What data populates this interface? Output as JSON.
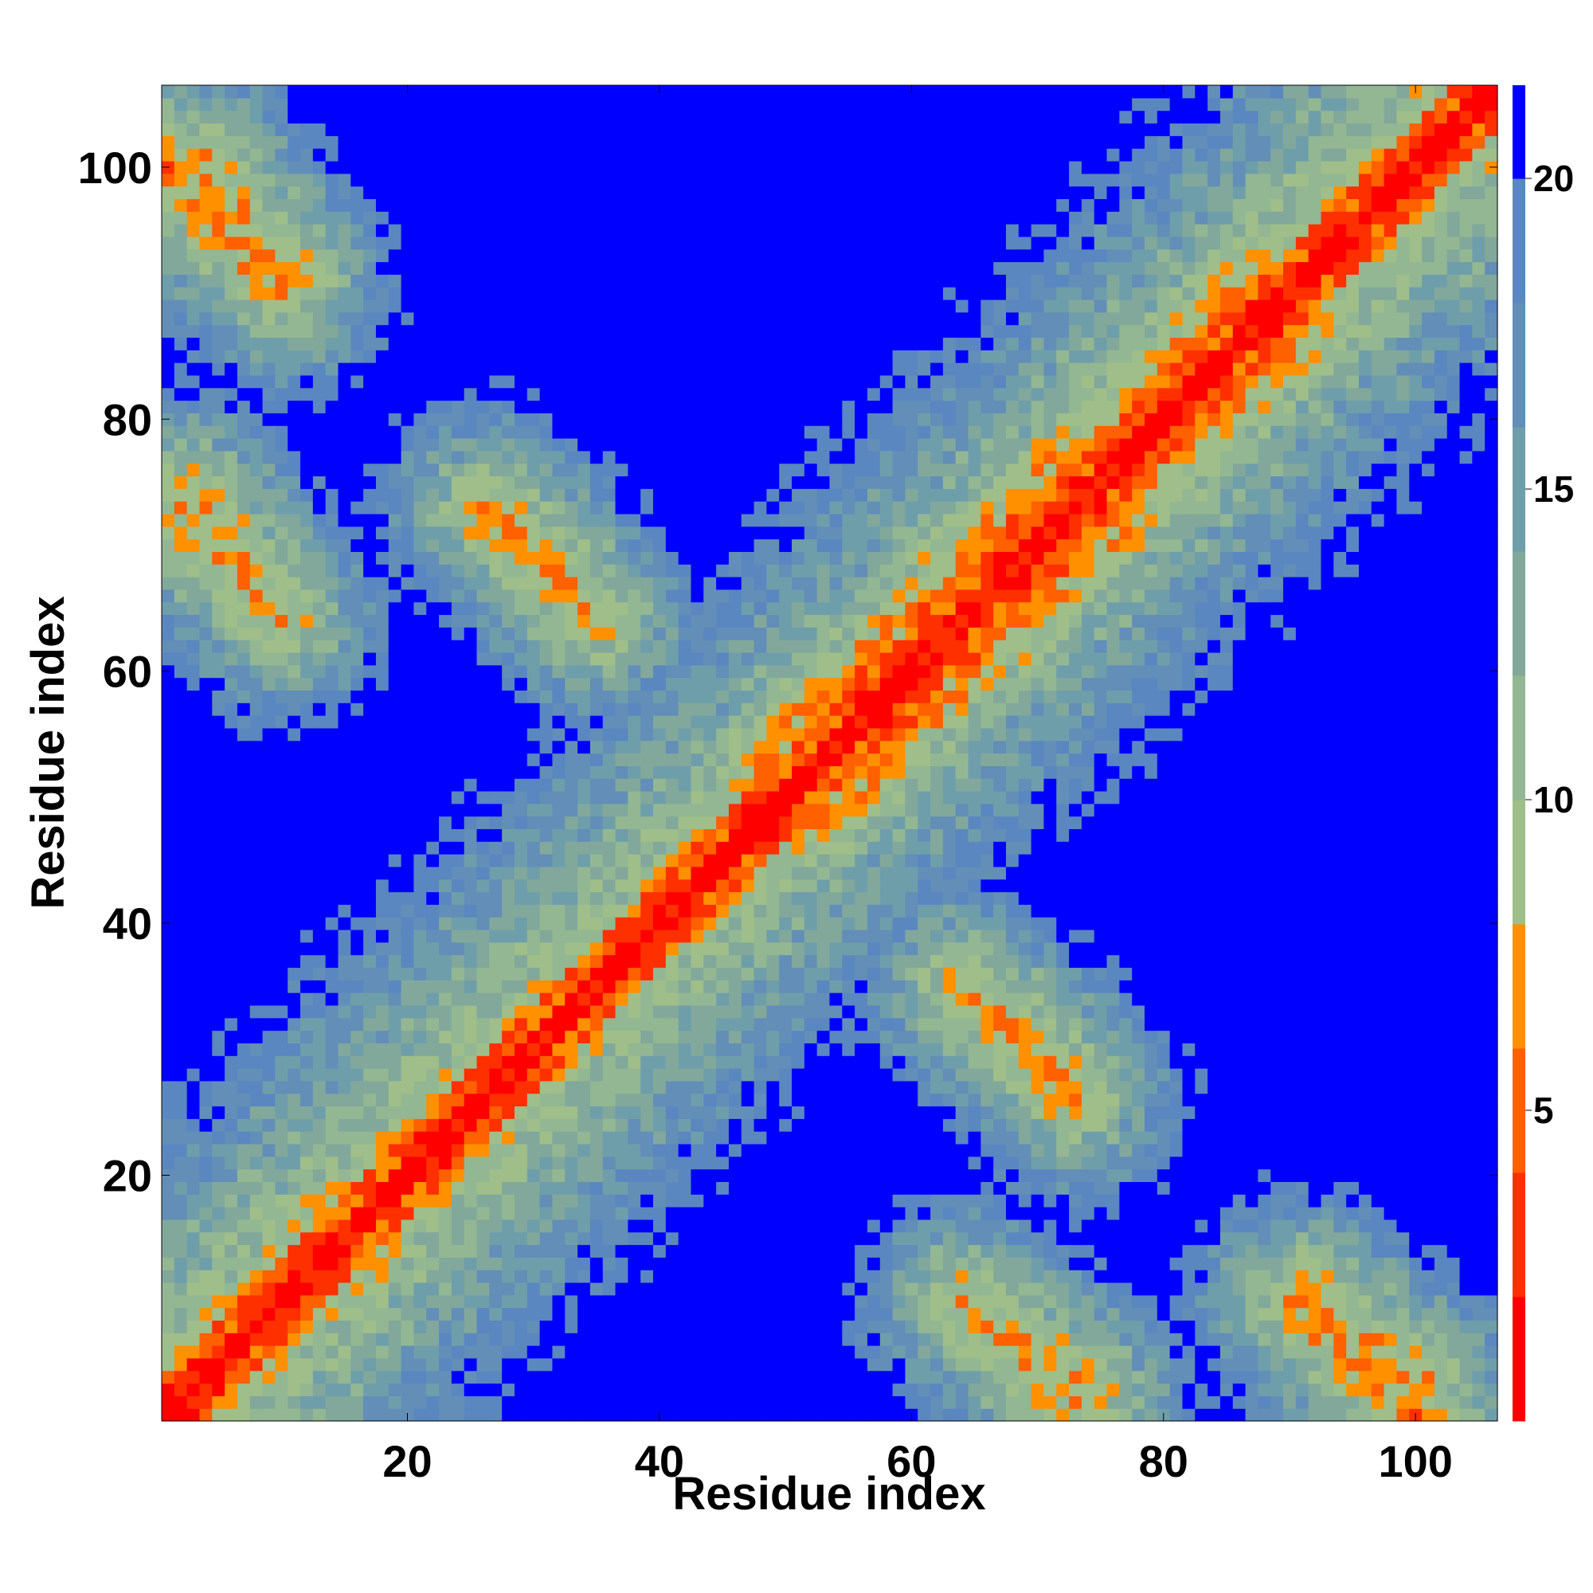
{
  "chart_data": {
    "type": "heatmap",
    "title": "",
    "xlabel": "Residue index",
    "ylabel": "Residue index",
    "residue_count": 106,
    "xlim": [
      0.5,
      106.5
    ],
    "ylim": [
      0.5,
      106.5
    ],
    "x_ticks": [
      20,
      40,
      60,
      80,
      100
    ],
    "y_ticks": [
      20,
      40,
      60,
      80,
      100
    ],
    "x_tick_labels": [
      "20",
      "40",
      "60",
      "80",
      "100"
    ],
    "y_tick_labels": [
      "20",
      "40",
      "60",
      "80",
      "100"
    ],
    "colorbar": {
      "range": [
        0,
        21.5
      ],
      "ticks": [
        5,
        10,
        15,
        20
      ],
      "tick_labels": [
        "5",
        "10",
        "15",
        "20"
      ],
      "bands": [
        {
          "from": 0,
          "to": 2,
          "color": "#ff0000"
        },
        {
          "from": 2,
          "to": 4,
          "color": "#ff3000"
        },
        {
          "from": 4,
          "to": 6,
          "color": "#ff6000"
        },
        {
          "from": 6,
          "to": 8,
          "color": "#ff9000"
        },
        {
          "from": 8,
          "to": 10,
          "color": "#9fbe8a"
        },
        {
          "from": 10,
          "to": 12,
          "color": "#93b792"
        },
        {
          "from": 12,
          "to": 14,
          "color": "#82a89b"
        },
        {
          "from": 14,
          "to": 16,
          "color": "#6f9eab"
        },
        {
          "from": 16,
          "to": 18,
          "color": "#628eb8"
        },
        {
          "from": 18,
          "to": 20,
          "color": "#5a87c0"
        },
        {
          "from": 20,
          "to": 21.5,
          "color": "#0000ff"
        }
      ]
    },
    "value_scale": "distance between residues (symmetric matrix)",
    "features": [
      {
        "name": "main diagonal",
        "from": [
          1,
          1
        ],
        "to": [
          106,
          106
        ],
        "value": 2
      },
      {
        "name": "helix band",
        "from": [
          1,
          3
        ],
        "to": [
          34,
          36
        ],
        "value": 6
      },
      {
        "name": "helix band",
        "from": [
          48,
          52
        ],
        "to": [
          88,
          92
        ],
        "value": 6
      },
      {
        "name": "antiparallel contact",
        "from": [
          3,
          100
        ],
        "to": [
          10,
          91
        ],
        "value": 6
      },
      {
        "name": "antiparallel contact",
        "from": [
          3,
          74
        ],
        "to": [
          10,
          64
        ],
        "value": 7
      },
      {
        "name": "antiparallel contact",
        "from": [
          27,
          73
        ],
        "to": [
          34,
          65
        ],
        "value": 7
      },
      {
        "name": "antiparallel contact",
        "from": [
          64,
          35
        ],
        "to": [
          73,
          26
        ],
        "value": 7
      },
      {
        "name": "antiparallel contact",
        "from": [
          64,
          10
        ],
        "to": [
          74,
          1
        ],
        "value": 7
      },
      {
        "name": "antiparallel contact",
        "from": [
          91,
          10
        ],
        "to": [
          100,
          1
        ],
        "value": 6
      }
    ]
  }
}
